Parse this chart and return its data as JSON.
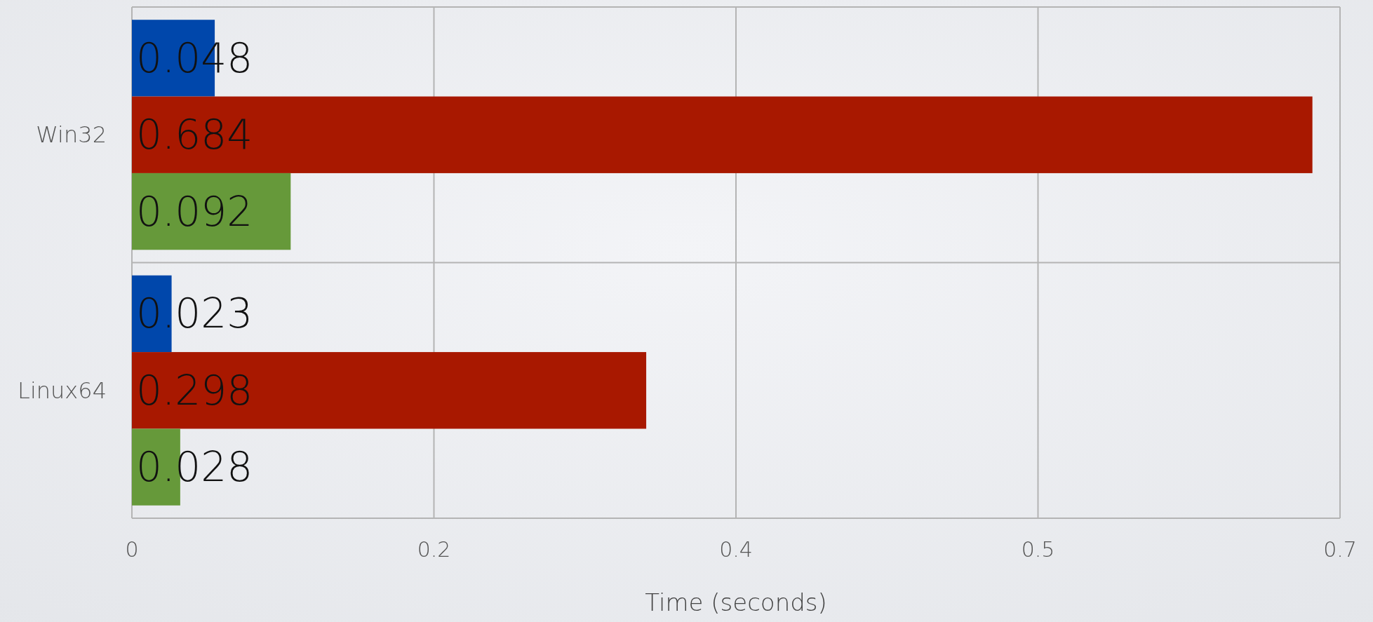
{
  "chart_data": {
    "type": "bar",
    "orientation": "horizontal",
    "xlabel": "Time (seconds)",
    "categories": [
      "Win32",
      "Linux64"
    ],
    "series": [
      {
        "color": "#0047ab",
        "values": [
          0.048,
          0.023
        ]
      },
      {
        "color": "#a81800",
        "values": [
          0.684,
          0.298
        ]
      },
      {
        "color": "#66993a",
        "values": [
          0.092,
          0.028
        ]
      }
    ],
    "xlim": [
      0,
      0.7
    ],
    "xticks": [
      0,
      {
        "value": 0.175,
        "label": "0.2"
      },
      {
        "value": 0.35,
        "label": "0.4"
      },
      {
        "value": 0.525,
        "label": "0.5"
      },
      0.7
    ],
    "grid": true,
    "data_labels": true
  }
}
